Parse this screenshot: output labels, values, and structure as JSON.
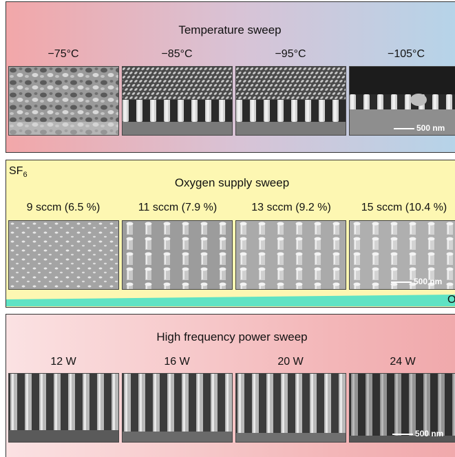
{
  "panels": [
    {
      "title": "Temperature sweep",
      "labels": [
        "−75°C",
        "−85°C",
        "−95°C",
        "−105°C"
      ],
      "scale_bar": "500 nm"
    },
    {
      "corner_label": {
        "main": "SF",
        "sub": "6"
      },
      "title": "Oxygen supply sweep",
      "labels": [
        "9 sccm (6.5 %)",
        "11 sccm (7.9 %)",
        "13 sccm (9.2 %)",
        "15 sccm (10.4 %)"
      ],
      "scale_bar": "500 nm",
      "axis_label": "O"
    },
    {
      "title": "High frequency power sweep",
      "labels": [
        "12 W",
        "16 W",
        "20 W",
        "24 W"
      ],
      "scale_bar": "500 nm"
    }
  ]
}
